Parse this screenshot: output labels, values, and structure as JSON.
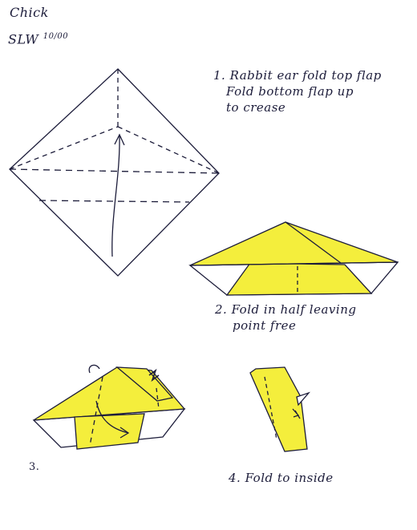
{
  "header": {
    "title": "Chick",
    "author": "SLW",
    "date": "10/00"
  },
  "steps": [
    {
      "lines": [
        "1. Rabbit ear fold top flap",
        "Fold bottom flap up",
        "to crease"
      ]
    },
    {
      "lines": [
        "2. Fold in half leaving",
        "point free"
      ]
    },
    {
      "lines": [
        "3."
      ]
    },
    {
      "lines": [
        "4. Fold to inside"
      ]
    }
  ],
  "colors": {
    "paper": "#f4ee3c",
    "ink": "#1c1c3a",
    "dash": "#1c1c3a"
  }
}
